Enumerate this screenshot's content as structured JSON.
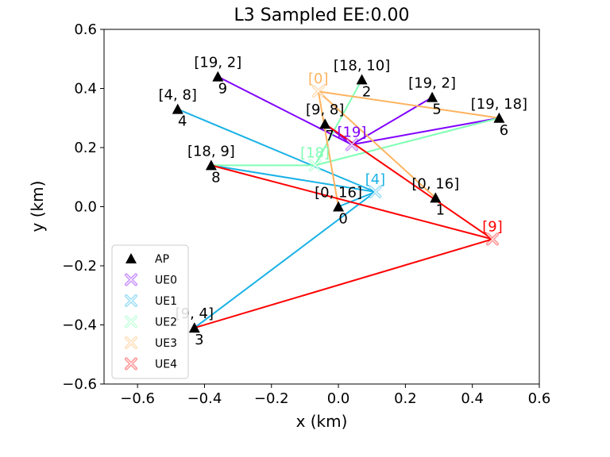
{
  "chart_data": {
    "type": "scatter",
    "title": "L3 Sampled EE:0.00",
    "xlabel": "x (km)",
    "ylabel": "y (km)",
    "xlim": [
      -0.7,
      0.6
    ],
    "ylim": [
      -0.6,
      0.6
    ],
    "xticks": [
      -0.6,
      -0.4,
      -0.2,
      0.0,
      0.2,
      0.4,
      0.6
    ],
    "yticks": [
      -0.6,
      -0.4,
      -0.2,
      0.0,
      0.2,
      0.4,
      0.6
    ],
    "xtick_labels": [
      "−0.6",
      "−0.4",
      "−0.2",
      "0.0",
      "0.2",
      "0.4",
      "0.6"
    ],
    "ytick_labels": [
      "−0.6",
      "−0.4",
      "−0.2",
      "0.0",
      "0.2",
      "0.4",
      "0.6"
    ],
    "grid": false,
    "legend_position": "lower-left",
    "access_points": [
      {
        "id": "0",
        "x": 0.0,
        "y": 0.0,
        "label": "[0, 16]"
      },
      {
        "id": "1",
        "x": 0.29,
        "y": 0.03,
        "label": "[0, 16]"
      },
      {
        "id": "2",
        "x": 0.07,
        "y": 0.43,
        "label": "[18, 10]"
      },
      {
        "id": "3",
        "x": -0.43,
        "y": -0.41,
        "label": "[9, 4]"
      },
      {
        "id": "4",
        "x": -0.48,
        "y": 0.33,
        "label": "[4, 8]"
      },
      {
        "id": "5",
        "x": 0.28,
        "y": 0.37,
        "label": "[19, 2]"
      },
      {
        "id": "6",
        "x": 0.48,
        "y": 0.3,
        "label": "[19, 18]"
      },
      {
        "id": "7",
        "x": -0.04,
        "y": 0.28,
        "label": "[9, 8]"
      },
      {
        "id": "8",
        "x": -0.38,
        "y": 0.14,
        "label": "[18, 9]"
      },
      {
        "id": "9",
        "x": -0.36,
        "y": 0.44,
        "label": "[19, 2]"
      }
    ],
    "users": [
      {
        "name": "UE0",
        "color": "#8000ff",
        "x": 0.04,
        "y": 0.21,
        "label": "[19]",
        "links": [
          "9",
          "5",
          "6",
          "7"
        ]
      },
      {
        "name": "UE1",
        "color": "#1ab2e6",
        "x": 0.11,
        "y": 0.05,
        "label": "[4]",
        "links": [
          "4",
          "8",
          "0",
          "3"
        ]
      },
      {
        "name": "UE2",
        "color": "#80ffb4",
        "x": -0.07,
        "y": 0.14,
        "label": "[18]",
        "links": [
          "8",
          "6",
          "2"
        ]
      },
      {
        "name": "UE3",
        "color": "#ffb360",
        "x": -0.06,
        "y": 0.39,
        "label": "[0]",
        "links": [
          "6",
          "1",
          "0"
        ]
      },
      {
        "name": "UE4",
        "color": "#ff0000",
        "x": 0.46,
        "y": -0.11,
        "label": "[9]",
        "links": [
          "3",
          "8",
          "7"
        ]
      }
    ],
    "legend": [
      {
        "label": "AP",
        "marker": "triangle",
        "color": "#000000"
      },
      {
        "label": "UE0",
        "marker": "x",
        "color": "#8000ff"
      },
      {
        "label": "UE1",
        "marker": "x",
        "color": "#1ab2e6"
      },
      {
        "label": "UE2",
        "marker": "x",
        "color": "#80ffb4"
      },
      {
        "label": "UE3",
        "marker": "x",
        "color": "#ffb360"
      },
      {
        "label": "UE4",
        "marker": "x",
        "color": "#ff0000"
      }
    ]
  }
}
